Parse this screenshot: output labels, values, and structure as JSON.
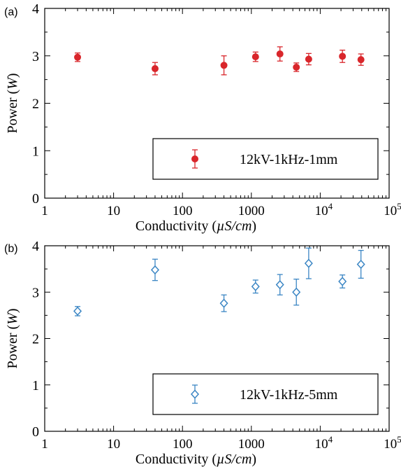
{
  "chart_data": [
    {
      "type": "scatter",
      "panel_label": "(a)",
      "xlabel_plain": "Conductivity (",
      "xlabel_italic": "µS/cm",
      "xlabel_close": ")",
      "ylabel_plain": "Power (",
      "ylabel_italic": "W",
      "ylabel_close": ")",
      "x_scale": "log",
      "xlim": [
        1,
        100000
      ],
      "ylim": [
        0,
        4
      ],
      "x_ticks": [
        {
          "value": 1,
          "label": "1"
        },
        {
          "value": 10,
          "label": "10"
        },
        {
          "value": 100,
          "label": "100"
        },
        {
          "value": 1000,
          "label": "1000"
        },
        {
          "value": 10000,
          "label": "10",
          "exponent": "4"
        },
        {
          "value": 100000,
          "label": "10",
          "exponent": "5"
        }
      ],
      "y_ticks": [
        0,
        1,
        2,
        3,
        4
      ],
      "grid": false,
      "legend_position": "bottom-right",
      "series": [
        {
          "name": "12kV-1kHz-1mm",
          "marker": "filled-circle",
          "color": "#d9262b",
          "points": [
            {
              "x": 3,
              "y": 2.97,
              "err": 0.09
            },
            {
              "x": 40,
              "y": 2.73,
              "err": 0.13
            },
            {
              "x": 400,
              "y": 2.8,
              "err": 0.2
            },
            {
              "x": 1150,
              "y": 2.98,
              "err": 0.1
            },
            {
              "x": 2600,
              "y": 3.04,
              "err": 0.15
            },
            {
              "x": 4500,
              "y": 2.76,
              "err": 0.09
            },
            {
              "x": 6800,
              "y": 2.93,
              "err": 0.12
            },
            {
              "x": 21000,
              "y": 2.99,
              "err": 0.13
            },
            {
              "x": 39000,
              "y": 2.92,
              "err": 0.12
            }
          ]
        }
      ]
    },
    {
      "type": "scatter",
      "panel_label": "(b)",
      "xlabel_plain": "Conductivity (",
      "xlabel_italic": "µS/cm",
      "xlabel_close": ")",
      "ylabel_plain": "Power (",
      "ylabel_italic": "W",
      "ylabel_close": ")",
      "x_scale": "log",
      "xlim": [
        1,
        100000
      ],
      "ylim": [
        0,
        4
      ],
      "x_ticks": [
        {
          "value": 1,
          "label": "1"
        },
        {
          "value": 10,
          "label": "10"
        },
        {
          "value": 100,
          "label": "100"
        },
        {
          "value": 1000,
          "label": "1000"
        },
        {
          "value": 10000,
          "label": "10",
          "exponent": "4"
        },
        {
          "value": 100000,
          "label": "10",
          "exponent": "5"
        }
      ],
      "y_ticks": [
        0,
        1,
        2,
        3,
        4
      ],
      "grid": false,
      "legend_position": "bottom-right",
      "series": [
        {
          "name": "12kV-1kHz-5mm",
          "marker": "open-diamond",
          "color": "#3b86c4",
          "points": [
            {
              "x": 3,
              "y": 2.59,
              "err": 0.1
            },
            {
              "x": 40,
              "y": 3.48,
              "err": 0.23
            },
            {
              "x": 400,
              "y": 2.76,
              "err": 0.18
            },
            {
              "x": 1150,
              "y": 3.12,
              "err": 0.14
            },
            {
              "x": 2600,
              "y": 3.16,
              "err": 0.22
            },
            {
              "x": 4500,
              "y": 3.0,
              "err": 0.28
            },
            {
              "x": 6800,
              "y": 3.62,
              "err": 0.33
            },
            {
              "x": 21000,
              "y": 3.23,
              "err": 0.14
            },
            {
              "x": 39000,
              "y": 3.6,
              "err": 0.3
            }
          ]
        }
      ]
    }
  ]
}
